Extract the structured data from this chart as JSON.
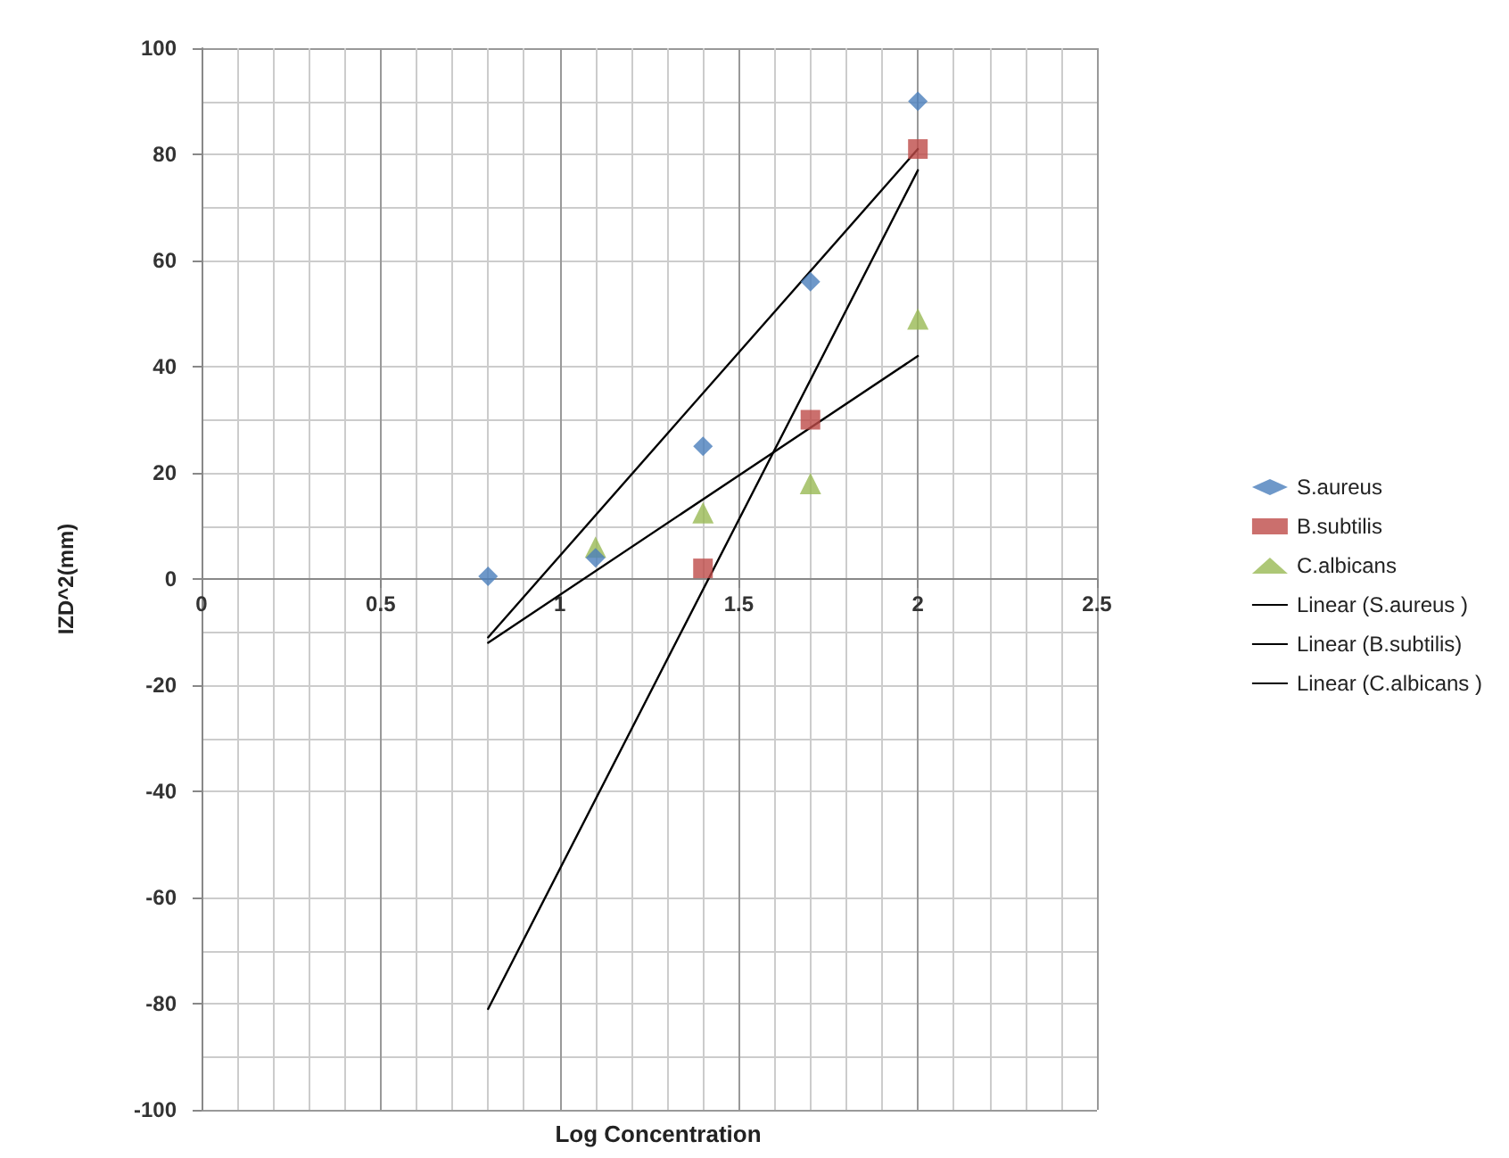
{
  "chart_data": {
    "type": "scatter",
    "xlabel": "Log Concentration",
    "ylabel": "IZD^2(mm)",
    "xlim": [
      0,
      2.5
    ],
    "xticks": [
      0,
      0.5,
      1,
      1.5,
      2,
      2.5
    ],
    "ylim": [
      -100,
      100
    ],
    "yticks": [
      -100,
      -80,
      -60,
      -40,
      -20,
      0,
      20,
      40,
      60,
      80,
      100
    ],
    "grid": true,
    "legend": "right",
    "series": [
      {
        "name": "S.aureus",
        "color": "#4a7ebb",
        "marker": "diamond",
        "x": [
          0.8,
          1.1,
          1.4,
          1.7,
          2
        ],
        "values": [
          0.5,
          4,
          25,
          56,
          90
        ]
      },
      {
        "name": "B.subtilis",
        "color": "#be4b48",
        "marker": "square",
        "x": [
          1.4,
          1.7,
          2
        ],
        "values": [
          2,
          30,
          81
        ]
      },
      {
        "name": "C.albicans",
        "color": "#98b954",
        "marker": "triangle",
        "x": [
          1.1,
          1.4,
          1.7,
          2
        ],
        "values": [
          6,
          12.5,
          18,
          49
        ]
      },
      {
        "name": "Linear (S.aureus )",
        "type": "line",
        "color": "#000000",
        "marker": "none",
        "line_style": "solid",
        "x": [
          0.8,
          2
        ],
        "values": [
          -11,
          81
        ]
      },
      {
        "name": "Linear (B.subtilis)",
        "type": "line",
        "color": "#000000",
        "marker": "none",
        "line_style": "solid",
        "x": [
          0.8,
          2
        ],
        "values": [
          -81,
          77
        ]
      },
      {
        "name": "Linear (C.albicans )",
        "type": "line",
        "color": "#000000",
        "marker": "none",
        "line_style": "solid",
        "x": [
          0.8,
          2
        ],
        "values": [
          -12,
          42
        ]
      }
    ]
  }
}
